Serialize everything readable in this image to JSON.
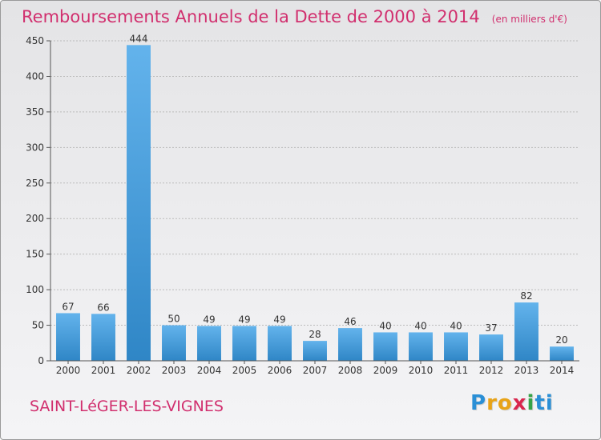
{
  "header": {
    "title": "Remboursements Annuels de la Dette de 2000 à 2014",
    "unit": "(en milliers d'€)"
  },
  "footer": {
    "commune": "SAINT-LéGER-LES-VIGNES",
    "brand_letters": [
      "P",
      "r",
      "o",
      "x",
      "i",
      "t",
      "i"
    ],
    "brand_colors": [
      "#2a8fd6",
      "#e8a317",
      "#e8a317",
      "#d9264e",
      "#36a348",
      "#2a8fd6",
      "#2a8fd6"
    ]
  },
  "colors": {
    "title": "#d12f6e",
    "bar_light": "#63b3ec",
    "bar_dark": "#2f86c6",
    "grid": "#bbbbbb",
    "axis": "#555555"
  },
  "chart_data": {
    "type": "bar",
    "categories": [
      "2000",
      "2001",
      "2002",
      "2003",
      "2004",
      "2005",
      "2006",
      "2007",
      "2008",
      "2009",
      "2010",
      "2011",
      "2012",
      "2013",
      "2014"
    ],
    "values": [
      67,
      66,
      444,
      50,
      49,
      49,
      49,
      28,
      46,
      40,
      40,
      40,
      37,
      82,
      20
    ],
    "title": "Remboursements Annuels de la Dette de 2000 à 2014",
    "ylim": [
      0,
      450
    ],
    "yticks": [
      0,
      50,
      100,
      150,
      200,
      250,
      300,
      350,
      400,
      450
    ],
    "grid": "horizontal"
  }
}
